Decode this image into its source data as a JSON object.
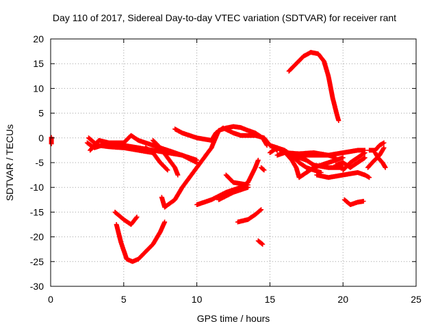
{
  "chart_data": {
    "type": "scatter",
    "title": "Day 110 of 2017, Sidereal Day-to-day VTEC variation (SDTVAR) for receiver rant",
    "xlabel": "GPS time / hours",
    "ylabel": "SDTVAR / TECUs",
    "xlim": [
      0,
      25
    ],
    "ylim": [
      -30,
      20
    ],
    "xticks": [
      0,
      5,
      10,
      15,
      20,
      25
    ],
    "yticks": [
      -30,
      -25,
      -20,
      -15,
      -10,
      -5,
      0,
      5,
      10,
      15,
      20
    ],
    "grid": true,
    "marker": "+",
    "color": "#ff0000",
    "segments": [
      [
        [
          0.05,
          0.1
        ],
        [
          0.05,
          -1.2
        ]
      ],
      [
        [
          2.5,
          -1.0
        ],
        [
          3.0,
          -2.0
        ],
        [
          3.5,
          -1.5
        ],
        [
          4.0,
          -1.2
        ],
        [
          5.0,
          -1.5
        ],
        [
          6.0,
          -2.0
        ],
        [
          7.0,
          -2.5
        ],
        [
          8.0,
          -3.0
        ],
        [
          9.0,
          -3.5
        ],
        [
          10.0,
          -5.0
        ]
      ],
      [
        [
          2.6,
          0.0
        ],
        [
          3.2,
          -1.5
        ],
        [
          4.0,
          -1.8
        ],
        [
          5.0,
          -2.0
        ],
        [
          6.0,
          -2.5
        ],
        [
          7.0,
          -3.0
        ]
      ],
      [
        [
          2.7,
          -2.5
        ],
        [
          3.3,
          -0.5
        ],
        [
          4.0,
          -1.0
        ],
        [
          5.0,
          -1.0
        ],
        [
          5.5,
          0.5
        ],
        [
          6.0,
          -0.5
        ],
        [
          6.5,
          -1.0
        ],
        [
          7.0,
          -1.5
        ],
        [
          8.0,
          -2.5
        ],
        [
          9.0,
          -3.5
        ],
        [
          10.0,
          -4.5
        ]
      ],
      [
        [
          7.0,
          -0.5
        ],
        [
          7.5,
          -2.0
        ],
        [
          8.0,
          -4.0
        ],
        [
          8.5,
          -6.0
        ],
        [
          8.7,
          -7.5
        ]
      ],
      [
        [
          6.5,
          -2.0
        ],
        [
          7.0,
          -3.0
        ],
        [
          7.5,
          -5.0
        ],
        [
          8.0,
          -6.5
        ]
      ],
      [
        [
          8.5,
          1.8
        ],
        [
          9.0,
          1.0
        ],
        [
          10.0,
          0.0
        ],
        [
          11.0,
          -0.5
        ],
        [
          11.3,
          1.0
        ],
        [
          11.8,
          2.0
        ],
        [
          12.5,
          1.0
        ],
        [
          13.0,
          0.5
        ],
        [
          14.0,
          0.5
        ],
        [
          14.6,
          0.0
        ],
        [
          15.0,
          -1.5
        ],
        [
          15.5,
          -2.5
        ]
      ],
      [
        [
          11.0,
          -2.0
        ],
        [
          11.5,
          1.5
        ],
        [
          12.0,
          2.0
        ],
        [
          12.5,
          2.3
        ],
        [
          13.0,
          2.1
        ],
        [
          13.5,
          1.5
        ],
        [
          14.0,
          1.0
        ],
        [
          14.5,
          0.0
        ],
        [
          14.8,
          -1.5
        ]
      ],
      [
        [
          7.6,
          -12.0
        ],
        [
          7.8,
          -14.0
        ],
        [
          8.5,
          -12.5
        ],
        [
          9.0,
          -10.0
        ],
        [
          10.0,
          -6.0
        ],
        [
          10.5,
          -4.0
        ],
        [
          11.0,
          -2.0
        ]
      ],
      [
        [
          10.0,
          -13.5
        ],
        [
          11.0,
          -12.5
        ],
        [
          12.0,
          -11.0
        ],
        [
          13.0,
          -10.0
        ],
        [
          13.5,
          -9.0
        ],
        [
          14.0,
          -6.0
        ],
        [
          14.2,
          -4.5
        ]
      ],
      [
        [
          11.5,
          -12.5
        ],
        [
          12.5,
          -11.0
        ],
        [
          13.5,
          -10.0
        ]
      ],
      [
        [
          14.4,
          -6.0
        ],
        [
          14.6,
          -6.5
        ]
      ],
      [
        [
          12.0,
          -7.5
        ],
        [
          12.5,
          -9.0
        ],
        [
          13.5,
          -9.5
        ]
      ],
      [
        [
          12.8,
          -17.0
        ],
        [
          13.5,
          -16.5
        ],
        [
          14.0,
          -15.5
        ],
        [
          14.4,
          -14.5
        ]
      ],
      [
        [
          14.2,
          -20.8
        ],
        [
          14.5,
          -21.5
        ]
      ],
      [
        [
          4.4,
          -15.0
        ],
        [
          5.0,
          -16.5
        ],
        [
          5.5,
          -17.5
        ],
        [
          5.9,
          -16.0
        ]
      ],
      [
        [
          4.5,
          -17.5
        ],
        [
          4.8,
          -21.0
        ],
        [
          5.2,
          -24.5
        ],
        [
          5.6,
          -25.0
        ],
        [
          6.0,
          -24.5
        ],
        [
          6.5,
          -23.0
        ],
        [
          7.0,
          -21.5
        ],
        [
          7.5,
          -19.0
        ],
        [
          7.8,
          -17.0
        ]
      ],
      [
        [
          15.0,
          -1.5
        ],
        [
          15.5,
          -2.0
        ],
        [
          16.0,
          -3.0
        ],
        [
          17.0,
          -3.5
        ],
        [
          18.0,
          -3.5
        ],
        [
          19.0,
          -3.5
        ],
        [
          20.0,
          -3.0
        ],
        [
          21.0,
          -2.5
        ],
        [
          21.5,
          -2.5
        ]
      ],
      [
        [
          15.5,
          -3.5
        ],
        [
          16.0,
          -3.0
        ],
        [
          17.0,
          -3.2
        ],
        [
          18.0,
          -3.0
        ],
        [
          19.0,
          -3.5
        ],
        [
          19.5,
          -4.0
        ]
      ],
      [
        [
          15.0,
          -3.0
        ],
        [
          15.5,
          -2.0
        ],
        [
          16.0,
          -2.5
        ],
        [
          16.5,
          -3.5
        ],
        [
          17.0,
          -5.0
        ],
        [
          17.5,
          -6.0
        ],
        [
          18.0,
          -6.5
        ],
        [
          18.5,
          -7.0
        ]
      ],
      [
        [
          16.5,
          -4.0
        ],
        [
          17.0,
          -4.0
        ],
        [
          17.5,
          -4.5
        ],
        [
          18.0,
          -5.5
        ],
        [
          19.0,
          -6.0
        ],
        [
          20.0,
          -6.0
        ]
      ],
      [
        [
          16.2,
          -3.5
        ],
        [
          16.5,
          -4.5
        ],
        [
          16.8,
          -6.0
        ],
        [
          17.0,
          -8.0
        ],
        [
          17.5,
          -7.0
        ],
        [
          18.0,
          -6.0
        ],
        [
          19.0,
          -5.0
        ],
        [
          20.0,
          -4.0
        ]
      ],
      [
        [
          16.3,
          13.5
        ],
        [
          16.8,
          15.0
        ],
        [
          17.3,
          16.5
        ],
        [
          17.8,
          17.3
        ],
        [
          18.3,
          17.0
        ],
        [
          18.7,
          15.5
        ],
        [
          19.0,
          12.5
        ],
        [
          19.3,
          8.0
        ],
        [
          19.6,
          4.5
        ],
        [
          19.7,
          3.5
        ]
      ],
      [
        [
          18.2,
          -7.5
        ],
        [
          19.0,
          -8.0
        ],
        [
          20.0,
          -7.5
        ],
        [
          21.0,
          -7.0
        ],
        [
          21.5,
          -7.5
        ],
        [
          21.8,
          -8.0
        ]
      ],
      [
        [
          19.5,
          -5.5
        ],
        [
          20.0,
          -5.0
        ],
        [
          20.5,
          -6.0
        ],
        [
          21.0,
          -5.0
        ],
        [
          21.5,
          -4.0
        ]
      ],
      [
        [
          20.0,
          -6.5
        ],
        [
          20.5,
          -5.0
        ],
        [
          21.0,
          -4.0
        ],
        [
          21.5,
          -3.0
        ]
      ],
      [
        [
          20.1,
          -12.5
        ],
        [
          20.5,
          -13.5
        ],
        [
          21.0,
          -13.0
        ],
        [
          21.4,
          -12.8
        ]
      ],
      [
        [
          21.7,
          -6.0
        ],
        [
          22.0,
          -5.0
        ],
        [
          22.5,
          -3.5
        ],
        [
          22.8,
          -2.0
        ]
      ],
      [
        [
          21.8,
          -2.5
        ],
        [
          22.2,
          -2.5
        ],
        [
          22.5,
          -1.5
        ],
        [
          22.8,
          -1.0
        ]
      ],
      [
        [
          22.2,
          -3.0
        ],
        [
          22.4,
          -4.0
        ],
        [
          22.7,
          -5.0
        ],
        [
          22.9,
          -6.0
        ]
      ]
    ]
  }
}
